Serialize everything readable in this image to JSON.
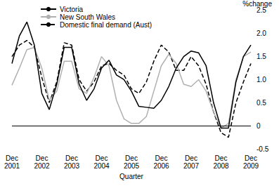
{
  "chart_data": {
    "type": "line",
    "x_label": "Quarter",
    "y_label": "%change",
    "categories": [
      "Dec 2001",
      null,
      null,
      null,
      "Dec 2002",
      null,
      null,
      null,
      "Dec 2003",
      null,
      null,
      null,
      "Dec 2004",
      null,
      null,
      null,
      "Dec 2005",
      null,
      null,
      null,
      "Dec 2006",
      null,
      null,
      null,
      "Dec 2007",
      null,
      null,
      null,
      "Dec 2008",
      null,
      null,
      null,
      "Dec 2009"
    ],
    "series": [
      {
        "name": "Victoria",
        "color": "#000000",
        "line_style": "solid",
        "values": [
          1.35,
          1.95,
          2.25,
          1.75,
          0.7,
          0.35,
          0.9,
          1.7,
          1.7,
          0.9,
          0.55,
          0.8,
          1.25,
          1.42,
          1.1,
          1.0,
          0.75,
          0.42,
          0.4,
          0.38,
          0.55,
          0.85,
          1.25,
          1.5,
          1.62,
          1.58,
          1.3,
          0.5,
          -0.05,
          -0.05,
          0.95,
          1.5,
          1.75
        ]
      },
      {
        "name": "New South Wales",
        "color": "#b0b0b0",
        "line_style": "solid",
        "values": [
          0.88,
          1.25,
          1.65,
          1.7,
          1.25,
          0.55,
          0.75,
          1.4,
          1.4,
          0.8,
          0.7,
          1.05,
          1.5,
          1.3,
          0.55,
          0.15,
          0.05,
          0.05,
          0.2,
          0.75,
          1.3,
          1.55,
          1.35,
          0.9,
          0.85,
          1.0,
          0.75,
          0.3,
          -0.05,
          0.05,
          1.0,
          1.5,
          1.6
        ]
      },
      {
        "name": "Domestic final demand (Aust)",
        "color": "#000000",
        "line_style": "dashed",
        "values": [
          1.5,
          1.75,
          1.85,
          1.7,
          1.05,
          0.5,
          0.95,
          1.8,
          1.75,
          1.0,
          0.75,
          0.95,
          1.3,
          1.35,
          1.2,
          1.1,
          0.8,
          0.7,
          0.95,
          1.4,
          1.75,
          1.6,
          1.2,
          1.2,
          1.5,
          1.3,
          0.9,
          0.3,
          -0.15,
          -0.25,
          0.5,
          0.95,
          1.35
        ]
      }
    ],
    "ylim": [
      -0.5,
      2.5
    ],
    "yticks": [
      -0.5,
      0,
      0.5,
      {
        "value": 1,
        "label": "1.0"
      },
      1.5,
      {
        "value": 2,
        "label": "2.0"
      },
      2.5
    ],
    "grid": false,
    "legend": "top-left"
  }
}
